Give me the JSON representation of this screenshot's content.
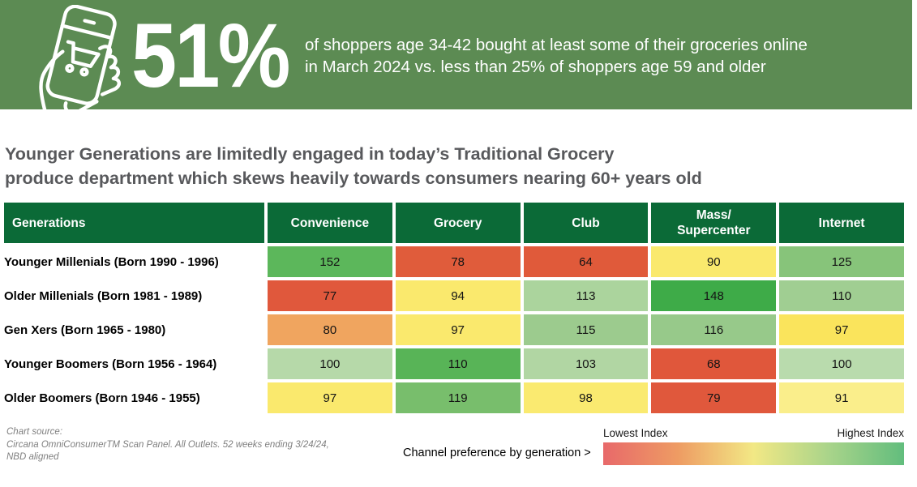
{
  "banner": {
    "bg_color": "#5C8B53",
    "stat": "51%",
    "description_line1": "of shoppers age 34-42 bought at least some of their groceries online",
    "description_line2": "in March 2024 vs. less than 25% of shoppers age 59 and older"
  },
  "headline": {
    "line1": "Younger Generations are limitedly engaged in today’s Traditional Grocery",
    "line2": "produce department which skews heavily towards consumers nearing 60+ years old"
  },
  "chart_data": {
    "type": "heatmap",
    "title": "Younger Generations are limitedly engaged in today’s Traditional Grocery produce department which skews heavily towards consumers nearing 60+ years old",
    "header_label": "Generations",
    "header_bg_color": "#0B6A37",
    "columns": [
      "Convenience",
      "Grocery",
      "Club",
      "Mass/\nSupercenter",
      "Internet"
    ],
    "rows": [
      {
        "label": "Younger Millenials (Born 1990 - 1996)",
        "values": [
          152,
          78,
          64,
          90,
          125
        ],
        "cell_colors": [
          "#5CB75B",
          "#E05C3B",
          "#E05A3A",
          "#FAE96D",
          "#87C47A"
        ]
      },
      {
        "label": "Older Millenials (Born 1981 - 1989)",
        "values": [
          77,
          94,
          113,
          148,
          110
        ],
        "cell_colors": [
          "#E0583C",
          "#FAE96D",
          "#ABD49D",
          "#3EAB48",
          "#A0CE92"
        ]
      },
      {
        "label": "Gen Xers (Born 1965 - 1980)",
        "values": [
          80,
          97,
          115,
          116,
          97
        ],
        "cell_colors": [
          "#F0A55F",
          "#FAE96D",
          "#9CCB8E",
          "#97C98A",
          "#FAE45C"
        ]
      },
      {
        "label": "Younger Boomers (Born 1956 - 1964)",
        "values": [
          100,
          110,
          103,
          68,
          100
        ],
        "cell_colors": [
          "#B6D9A9",
          "#58B457",
          "#B1D6A3",
          "#E0573B",
          "#B9DBAD"
        ]
      },
      {
        "label": "Older Boomers (Born 1946 - 1955)",
        "values": [
          97,
          119,
          98,
          79,
          91
        ],
        "cell_colors": [
          "#FAE96D",
          "#78BE6C",
          "#FAEA70",
          "#E0583C",
          "#FAEE8B"
        ]
      }
    ],
    "legend": {
      "caption": "Channel preference by generation >",
      "lowest_label": "Lowest Index",
      "highest_label": "Highest Index",
      "gradient_colors": [
        "#E8696A",
        "#EE9C63",
        "#F2E885",
        "#A9D48A",
        "#62BD7D"
      ]
    }
  },
  "footer": {
    "source_line1": "Chart source:",
    "source_line2": "Circana OmniConsumerTM Scan Panel. All Outlets. 52 weeks ending 3/24/24,",
    "source_line3": "NBD aligned"
  }
}
